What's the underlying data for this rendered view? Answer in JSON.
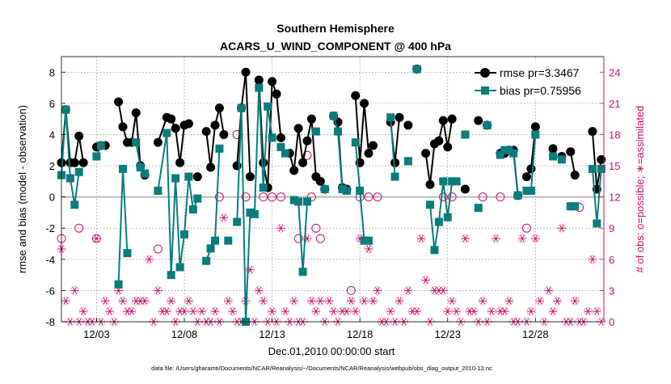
{
  "chart_data": {
    "type": "line",
    "title": "Southern Hemisphere",
    "subtitle": "ACARS_U_WIND_COMPONENT @ 400 hPa",
    "xlabel": "Dec.01,2010 00:00:00 start",
    "ylabel_left": "rmse and bias (model - observation)",
    "ylabel_right": "# of obs: o=possible; ∗=assimilated",
    "footnote": "data file: /Users/gharamti/Documents/NCAR/Reanalysis/~/Documents/NCAR/Reanalysis/webpub/obs_diag_output_2010-12.nc",
    "xlim": [
      1,
      31.9
    ],
    "ylim_left": [
      -8,
      9
    ],
    "ylim_right": [
      0,
      25.5
    ],
    "xticks": [
      {
        "x": 3,
        "label": "12/03"
      },
      {
        "x": 8,
        "label": "12/08"
      },
      {
        "x": 13,
        "label": "12/13"
      },
      {
        "x": 18,
        "label": "12/18"
      },
      {
        "x": 23,
        "label": "12/23"
      },
      {
        "x": 28,
        "label": "12/28"
      }
    ],
    "yticks_left": [
      -8,
      -6,
      -4,
      -2,
      0,
      2,
      4,
      6,
      8
    ],
    "yticks_right": [
      0,
      3,
      6,
      9,
      12,
      15,
      18,
      21,
      24
    ],
    "zero_line": 0,
    "legend_position": "top-right",
    "colors": {
      "rmse": "#000000",
      "bias": "#0a7c7c",
      "obs": "#c8106a",
      "zero": "#bbbbbb"
    },
    "series": [
      {
        "name": "rmse pr=3.3467",
        "axis": "left",
        "marker": "circle",
        "x": [
          1.0,
          1.25,
          1.5,
          1.75,
          2.0,
          2.25,
          2.5,
          3.0,
          3.25,
          3.5,
          4.0,
          4.25,
          4.5,
          4.75,
          5.0,
          5.25,
          5.5,
          5.75,
          6.0,
          6.25,
          6.5,
          7.0,
          7.25,
          7.5,
          7.75,
          8.0,
          8.25,
          8.5,
          8.75,
          9.0,
          9.25,
          9.5,
          9.75,
          10.0,
          10.25,
          10.5,
          10.75,
          11.0,
          11.25,
          11.5,
          11.75,
          12.0,
          12.25,
          12.5,
          12.75,
          13.0,
          13.25,
          13.5,
          13.75,
          14.0,
          14.25,
          14.5,
          14.75,
          15.0,
          15.25,
          15.5,
          15.75,
          16.0,
          16.25,
          16.5,
          16.75,
          17.0,
          17.25,
          17.5,
          17.75,
          18.0,
          18.25,
          18.5,
          18.75,
          19.0,
          19.25,
          19.5,
          19.75,
          20.0,
          20.25,
          20.5,
          20.75,
          21.0,
          21.25,
          21.5,
          21.75,
          22.0,
          22.25,
          22.5,
          22.75,
          23.0,
          23.25,
          23.5,
          23.75,
          24.0,
          24.25,
          24.5,
          24.75,
          25.0,
          25.25,
          25.5,
          25.75,
          26.0,
          26.25,
          26.5,
          26.75,
          27.0,
          27.25,
          27.5,
          27.75,
          28.0,
          28.25,
          28.5,
          28.75,
          29.0,
          29.25,
          29.5,
          29.75,
          30.0,
          30.25,
          30.5,
          30.75,
          31.0,
          31.25,
          31.5,
          31.75
        ],
        "y": [
          2.2,
          5.6,
          2.2,
          2.2,
          3.9,
          2.2,
          null,
          3.2,
          3.3,
          3.3,
          null,
          6.1,
          4.5,
          3.5,
          3.5,
          5.4,
          2.0,
          1.4,
          null,
          null,
          3.5,
          5.1,
          5.0,
          4.4,
          2.2,
          4.6,
          4.7,
          null,
          1.3,
          null,
          4.2,
          1.9,
          4.6,
          5.7,
          4.0,
          null,
          null,
          2.0,
          5.7,
          8.0,
          1.3,
          null,
          7.5,
          2.2,
          0.6,
          7.4,
          6.6,
          3.8,
          null,
          2.8,
          1.7,
          4.4,
          2.2,
          3.6,
          5.0,
          1.3,
          1.0,
          0.5,
          null,
          5.2,
          4.8,
          0.6,
          0.5,
          null,
          6.5,
          2.2,
          6.0,
          2.8,
          3.3,
          null,
          null,
          null,
          4.8,
          2.2,
          5.1,
          null,
          4.6,
          null,
          8.2,
          null,
          2.8,
          0.8,
          3.4,
          3.6,
          4.9,
          3.2,
          5.0,
          null,
          null,
          0.5,
          null,
          null,
          4.9,
          null,
          4.6,
          null,
          null,
          2.8,
          2.8,
          3.0,
          3.0,
          0.1,
          null,
          1.3,
          1.8,
          4.5,
          null,
          null,
          null,
          3.1,
          null,
          2.6,
          null,
          2.9,
          1.4,
          null,
          null,
          null,
          4.2,
          0.5,
          2.4
        ]
      },
      {
        "name": "bias pr=0.75956",
        "axis": "left",
        "marker": "square",
        "x": [
          1.0,
          1.25,
          1.5,
          1.75,
          2.0,
          2.25,
          2.5,
          3.0,
          3.25,
          3.5,
          4.0,
          4.25,
          4.5,
          4.75,
          5.0,
          5.25,
          5.5,
          5.75,
          6.0,
          6.25,
          6.5,
          7.0,
          7.25,
          7.5,
          7.75,
          8.0,
          8.25,
          8.5,
          8.75,
          9.0,
          9.25,
          9.5,
          9.75,
          10.0,
          10.25,
          10.5,
          10.75,
          11.0,
          11.25,
          11.5,
          11.75,
          12.0,
          12.25,
          12.5,
          12.75,
          13.0,
          13.25,
          13.5,
          13.75,
          14.0,
          14.25,
          14.5,
          14.75,
          15.0,
          15.25,
          15.5,
          15.75,
          16.0,
          16.25,
          16.5,
          16.75,
          17.0,
          17.25,
          17.5,
          17.75,
          18.0,
          18.25,
          18.5,
          18.75,
          19.0,
          19.25,
          19.5,
          19.75,
          20.0,
          20.25,
          20.5,
          20.75,
          21.0,
          21.25,
          21.5,
          21.75,
          22.0,
          22.25,
          22.5,
          22.75,
          23.0,
          23.25,
          23.5,
          23.75,
          24.0,
          24.25,
          24.5,
          24.75,
          25.0,
          25.25,
          25.5,
          25.75,
          26.0,
          26.25,
          26.5,
          26.75,
          27.0,
          27.25,
          27.5,
          27.75,
          28.0,
          28.25,
          28.5,
          28.75,
          29.0,
          29.25,
          29.5,
          29.75,
          30.0,
          30.25,
          30.5,
          30.75,
          31.0,
          31.25,
          31.5,
          31.75
        ],
        "y": [
          1.4,
          5.6,
          1.2,
          -0.5,
          1.6,
          null,
          null,
          2.6,
          3.3,
          null,
          null,
          -5.6,
          1.8,
          -3.6,
          null,
          3.5,
          1.9,
          1.5,
          null,
          null,
          0.4,
          4.1,
          -5.0,
          1.2,
          -4.5,
          -2.4,
          1.3,
          -0.8,
          -0.1,
          null,
          -4.1,
          -3.3,
          -2.8,
          3.1,
          null,
          -2.8,
          null,
          -1.6,
          5.7,
          -8.0,
          -1.0,
          -1.1,
          7.0,
          0.6,
          5.8,
          3.8,
          null,
          3.2,
          2.8,
          null,
          -0.2,
          -0.3,
          -4.8,
          -0.3,
          null,
          4.2,
          null,
          0.5,
          null,
          5.2,
          4.2,
          0.5,
          0.4,
          null,
          3.5,
          0.4,
          -2.8,
          -2.8,
          null,
          null,
          null,
          null,
          5.1,
          1.3,
          null,
          null,
          2.3,
          null,
          8.2,
          null,
          null,
          -0.5,
          -3.4,
          -1.6,
          1.0,
          -1.3,
          1.0,
          1.0,
          null,
          4.0,
          null,
          null,
          -0.7,
          null,
          4.6,
          null,
          null,
          2.7,
          3.0,
          3.0,
          2.8,
          0.1,
          null,
          0.4,
          0.4,
          4.0,
          null,
          null,
          null,
          2.6,
          null,
          2.4,
          null,
          -0.6,
          -0.6,
          null,
          null,
          null,
          1.8,
          -1.7,
          1.8
        ]
      },
      {
        "name": "",
        "axis": "right",
        "marker": "open-circle",
        "x": [
          1.0,
          2.0,
          3.0,
          6.5,
          10.0,
          11.0,
          11.5,
          12.5,
          13.0,
          13.5,
          14.5,
          15.0,
          15.25,
          15.5,
          15.75,
          17.5,
          18.0,
          18.5,
          19.0,
          22.75,
          23.25,
          25.0,
          26.0,
          27.5,
          30.5
        ],
        "y": [
          8,
          9,
          8,
          7,
          12,
          18,
          12,
          12,
          12,
          12,
          8,
          16,
          12,
          9,
          8,
          3,
          12,
          12,
          12,
          12,
          12,
          12,
          12,
          9,
          11
        ]
      },
      {
        "name": "",
        "axis": "right",
        "marker": "asterisk",
        "x": [
          1.0,
          1.25,
          1.5,
          1.75,
          2.0,
          2.25,
          2.5,
          2.75,
          3.0,
          3.25,
          3.5,
          3.75,
          4.0,
          4.25,
          4.5,
          4.75,
          5.0,
          5.25,
          5.5,
          5.75,
          6.0,
          6.25,
          6.5,
          6.75,
          7.0,
          7.25,
          7.5,
          7.75,
          8.0,
          8.25,
          8.5,
          8.75,
          9.0,
          9.25,
          9.5,
          9.75,
          10.0,
          10.25,
          10.5,
          10.75,
          11.0,
          11.25,
          11.5,
          11.75,
          12.0,
          12.25,
          12.5,
          12.75,
          13.0,
          13.25,
          13.5,
          13.75,
          14.0,
          14.25,
          14.5,
          14.75,
          15.0,
          15.25,
          15.5,
          15.75,
          16.0,
          16.25,
          16.5,
          16.75,
          17.0,
          17.25,
          17.5,
          17.75,
          18.0,
          18.25,
          18.5,
          18.75,
          19.0,
          19.25,
          19.5,
          19.75,
          20.0,
          20.25,
          20.5,
          20.75,
          21.0,
          21.25,
          21.5,
          21.75,
          22.0,
          22.25,
          22.5,
          22.75,
          23.0,
          23.25,
          23.5,
          23.75,
          24.0,
          24.25,
          24.5,
          24.75,
          25.0,
          25.25,
          25.5,
          25.75,
          26.0,
          26.25,
          26.5,
          26.75,
          27.0,
          27.25,
          27.5,
          27.75,
          28.0,
          28.25,
          28.5,
          28.75,
          29.0,
          29.25,
          29.5,
          29.75,
          30.0,
          30.25,
          30.5,
          30.75,
          31.0,
          31.25,
          31.5,
          31.75
        ],
        "y": [
          7,
          2,
          0,
          3,
          0,
          1,
          0,
          0,
          8,
          0,
          2,
          1,
          0,
          3,
          2,
          1,
          1,
          2,
          2,
          2,
          6,
          0,
          3,
          1,
          1,
          2,
          0,
          1,
          1,
          2,
          1,
          0,
          1,
          0,
          0,
          1,
          0,
          10,
          2,
          1,
          0,
          0,
          2,
          5,
          0,
          3,
          2,
          0,
          1,
          0,
          9,
          1,
          0,
          2,
          0,
          0,
          8,
          2,
          1,
          2,
          0,
          2,
          1,
          0,
          1,
          1,
          2,
          1,
          8,
          2,
          7,
          2,
          3,
          0,
          0,
          1,
          0,
          2,
          0,
          3,
          1,
          1,
          8,
          4,
          0,
          3,
          3,
          3,
          1,
          2,
          1,
          0,
          8,
          1,
          1,
          0,
          2,
          0,
          1,
          8,
          1,
          1,
          2,
          0,
          0,
          8,
          0,
          1,
          8,
          2,
          0,
          3,
          1,
          2,
          9,
          0,
          0,
          2,
          0,
          0,
          1,
          6,
          1,
          0
        ]
      }
    ]
  }
}
